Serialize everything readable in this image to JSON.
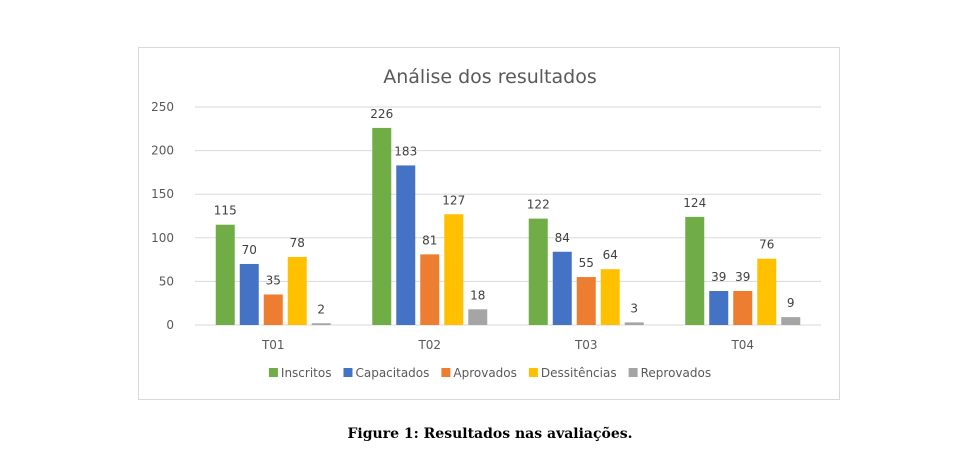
{
  "chart_data": {
    "type": "bar",
    "title": "Análise dos resultados",
    "xlabel": "",
    "ylabel": "",
    "categories": [
      "T01",
      "T02",
      "T03",
      "T04"
    ],
    "ylim": [
      0,
      250
    ],
    "yticks": [
      0,
      50,
      100,
      150,
      200,
      250
    ],
    "yticks_labels": [
      "0",
      "50",
      "100",
      "150",
      "200",
      "250"
    ],
    "grid": true,
    "legend_position": "bottom",
    "data_labels": true,
    "series": [
      {
        "name": "Inscritos",
        "color": "#70ad47",
        "values": [
          115,
          226,
          122,
          124
        ]
      },
      {
        "name": "Capacitados",
        "color": "#4472c4",
        "values": [
          70,
          183,
          84,
          39
        ]
      },
      {
        "name": "Aprovados",
        "color": "#ed7d31",
        "values": [
          35,
          81,
          55,
          39
        ]
      },
      {
        "name": "Dessitências",
        "color": "#ffc000",
        "values": [
          78,
          127,
          64,
          76
        ]
      },
      {
        "name": "Reprovados",
        "color": "#a5a5a5",
        "values": [
          2,
          18,
          3,
          9
        ]
      }
    ]
  },
  "caption": "Figure 1: Resultados nas avaliações."
}
